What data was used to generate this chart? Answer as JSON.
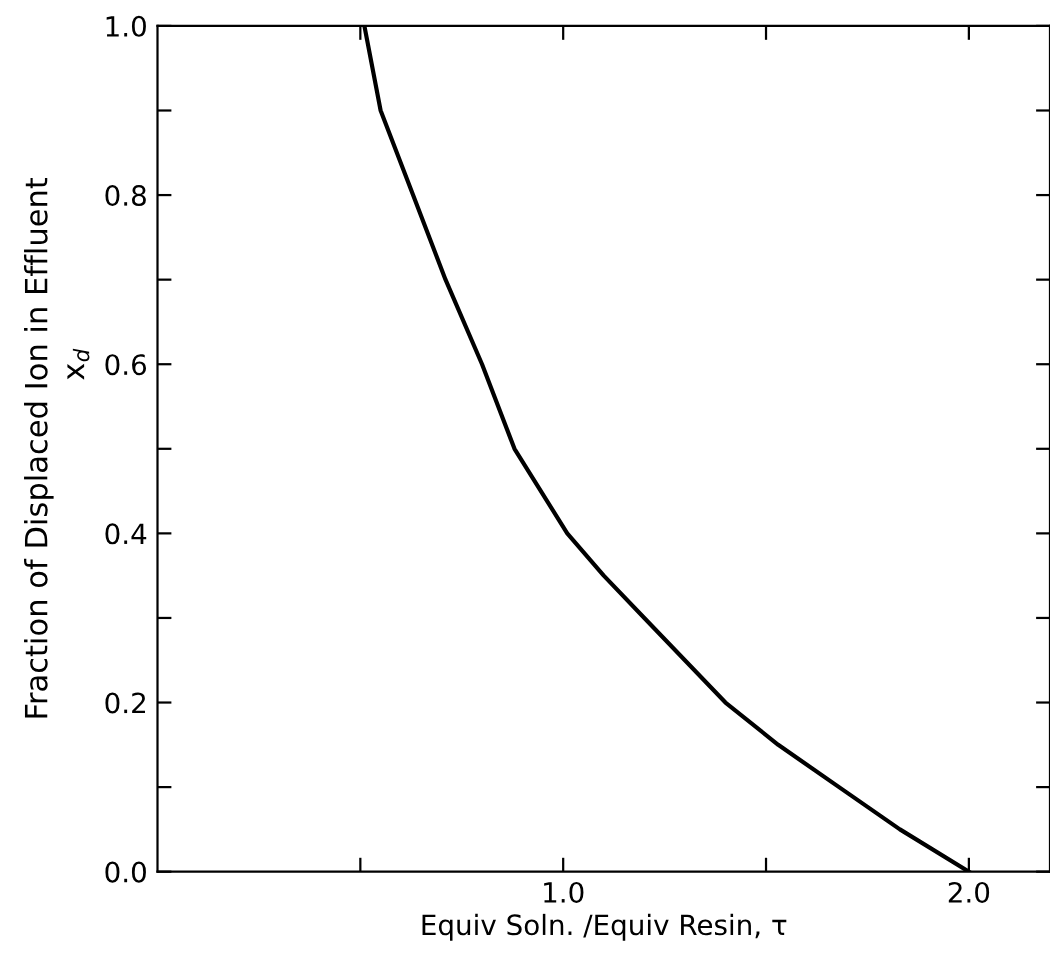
{
  "chart_data": {
    "type": "line",
    "xlabel": "Equiv Soln. /Equiv Resin, τ",
    "ylabel": "Fraction of Displaced Ion in Effluent",
    "annotations": [
      "x$_{d}$"
    ],
    "x": [
      0.51,
      0.55,
      0.63,
      0.71,
      0.8,
      0.88,
      1.01,
      1.1,
      1.2,
      1.3,
      1.4,
      1.53,
      1.68,
      1.83,
      2.0
    ],
    "series": [
      {
        "color": "#000000",
        "values": [
          1.0,
          0.9,
          0.8,
          0.7,
          0.6,
          0.5,
          0.4,
          0.35,
          0.3,
          0.25,
          0.2,
          0.15,
          0.1,
          0.05,
          0.0
        ]
      }
    ],
    "xlim": [
      0,
      2.2
    ],
    "ylim": [
      0,
      1.0
    ],
    "xticks": [
      {
        "value": 0.5,
        "label": null
      },
      {
        "value": 1.0,
        "label": "1.0"
      },
      {
        "value": 1.5,
        "label": null
      },
      {
        "value": 2.0,
        "label": "2.0"
      }
    ],
    "yticks": [
      {
        "value": 0.0,
        "label": "0.0"
      },
      {
        "value": 0.1,
        "label": null
      },
      {
        "value": 0.2,
        "label": "0.2"
      },
      {
        "value": 0.3,
        "label": null
      },
      {
        "value": 0.4,
        "label": "0.4"
      },
      {
        "value": 0.5,
        "label": null
      },
      {
        "value": 0.6,
        "label": "0.6"
      },
      {
        "value": 0.7,
        "label": null
      },
      {
        "value": 0.8,
        "label": "0.8"
      },
      {
        "value": 0.9,
        "label": null
      },
      {
        "value": 1.0,
        "label": "1.0"
      }
    ],
    "grid": false,
    "legend": false,
    "marker": "none",
    "line_style": "solid"
  }
}
